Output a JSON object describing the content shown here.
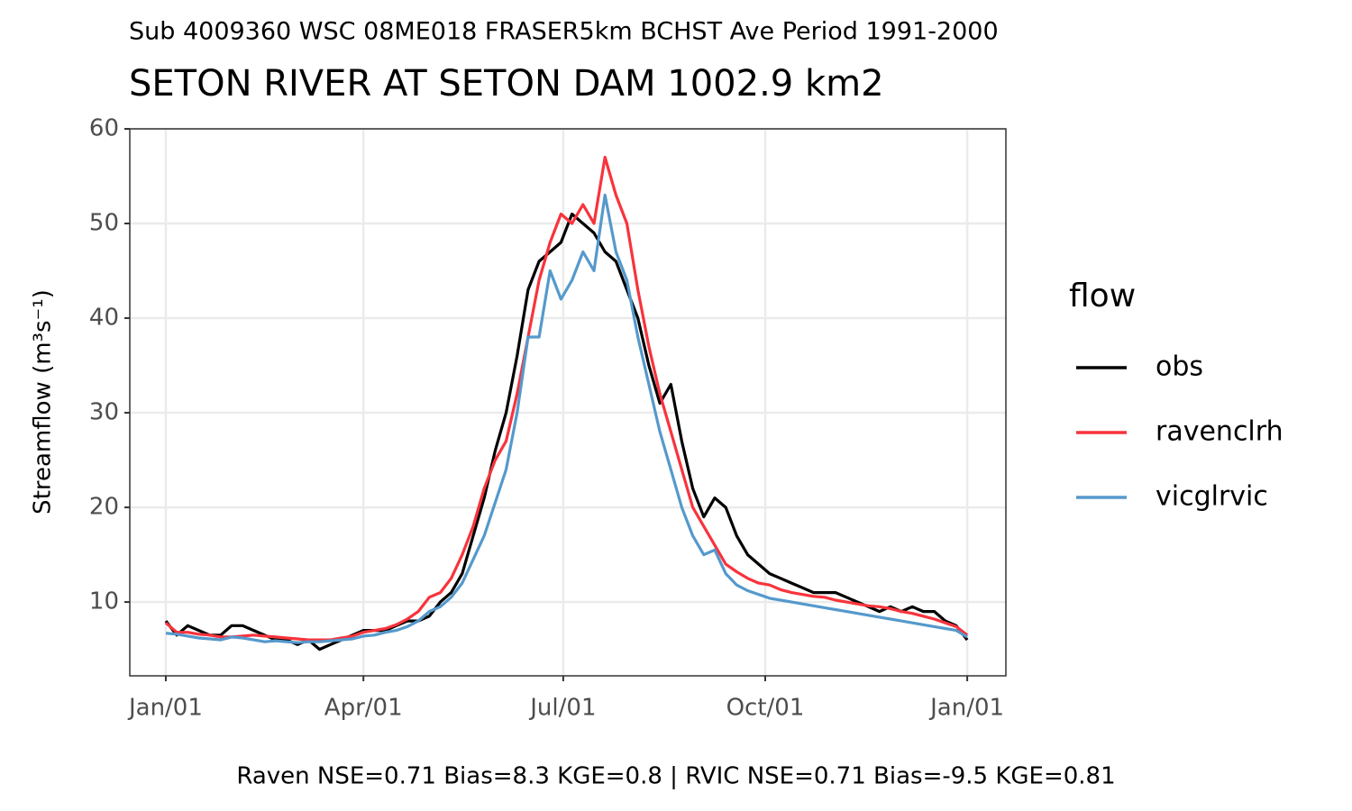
{
  "chart_data": {
    "type": "line",
    "subtitle": "Sub 4009360 WSC 08ME018 FRASER5km BCHST Ave Period 1991-2000",
    "title": "SETON RIVER AT SETON DAM 1002.9 km2",
    "y_label": "Streamflow (m³s⁻¹)",
    "caption": "Raven NSE=0.71 Bias=8.3 KGE=0.8 | RVIC NSE=0.71 Bias=-9.5 KGE=0.81",
    "legend_title": "flow",
    "legend_position": "right",
    "grid": true,
    "xlim": [
      -16.4,
      382.6
    ],
    "xticks": [
      {
        "value": 0,
        "label": "Jan/01"
      },
      {
        "value": 90,
        "label": "Apr/01"
      },
      {
        "value": 181,
        "label": "Jul/01"
      },
      {
        "value": 273,
        "label": "Oct/01"
      },
      {
        "value": 365,
        "label": "Jan/01"
      }
    ],
    "ylim": [
      2.2,
      60
    ],
    "yticks": [
      10,
      20,
      30,
      40,
      50,
      60
    ],
    "x": [
      0,
      5,
      10,
      15,
      20,
      25,
      30,
      35,
      40,
      45,
      50,
      55,
      60,
      65,
      70,
      75,
      80,
      85,
      90,
      95,
      100,
      105,
      110,
      115,
      120,
      125,
      130,
      135,
      140,
      145,
      150,
      155,
      160,
      165,
      170,
      175,
      180,
      185,
      190,
      195,
      200,
      205,
      210,
      215,
      220,
      225,
      230,
      235,
      240,
      245,
      250,
      255,
      260,
      265,
      270,
      275,
      280,
      285,
      290,
      295,
      300,
      305,
      310,
      315,
      320,
      325,
      330,
      335,
      340,
      345,
      350,
      355,
      360,
      365
    ],
    "series": [
      {
        "name": "obs",
        "color": "#000000",
        "values": [
          8,
          6.5,
          7.5,
          7,
          6.5,
          6.5,
          7.5,
          7.5,
          7,
          6.5,
          6,
          6,
          5.5,
          6,
          5,
          5.5,
          6,
          6.5,
          7,
          7,
          7,
          7.5,
          8,
          8,
          8.5,
          10,
          11,
          13,
          17,
          21,
          26,
          30,
          36,
          43,
          46,
          47,
          48,
          51,
          50,
          49,
          47,
          46,
          43,
          40,
          35,
          31,
          33,
          27,
          22,
          19,
          21,
          20,
          17,
          15,
          14,
          13,
          12.5,
          12,
          11.5,
          11,
          11,
          11,
          10.5,
          10,
          9.5,
          9,
          9.5,
          9,
          9.5,
          9,
          9,
          8,
          7.5,
          6
        ]
      },
      {
        "name": "ravenclrh",
        "color": "#f8333c",
        "values": [
          7.8,
          6.8,
          6.8,
          6.6,
          6.5,
          6.3,
          6.3,
          6.4,
          6.5,
          6.4,
          6.3,
          6.2,
          6.1,
          6,
          6,
          6,
          6.2,
          6.4,
          6.8,
          7,
          7.2,
          7.6,
          8.2,
          9,
          10.5,
          11,
          12.5,
          15,
          18,
          22,
          25,
          27,
          32,
          38,
          44,
          48,
          51,
          50,
          52,
          50,
          57,
          53,
          50,
          43,
          37,
          32,
          28,
          24,
          20,
          18,
          16,
          14,
          13.2,
          12.5,
          12,
          11.8,
          11.3,
          11,
          10.8,
          10.6,
          10.5,
          10.2,
          10,
          9.8,
          9.6,
          9.5,
          9.3,
          9,
          8.8,
          8.5,
          8.2,
          7.8,
          7.4,
          6.5
        ]
      },
      {
        "name": "vicglrvic",
        "color": "#5599cc",
        "values": [
          6.7,
          6.6,
          6.4,
          6.2,
          6.1,
          6,
          6.3,
          6.2,
          6,
          5.8,
          5.9,
          5.8,
          5.7,
          5.8,
          5.8,
          5.9,
          6,
          6.1,
          6.4,
          6.5,
          6.8,
          7,
          7.4,
          8,
          9,
          9.5,
          10.5,
          12,
          14.5,
          17,
          20.5,
          24,
          30,
          38,
          38,
          45,
          42,
          44,
          47,
          45,
          53,
          47,
          44,
          38,
          33,
          28,
          24,
          20,
          17,
          15,
          15.5,
          13,
          11.8,
          11.2,
          10.8,
          10.4,
          10.2,
          10,
          9.8,
          9.6,
          9.4,
          9.2,
          9,
          8.8,
          8.6,
          8.4,
          8.2,
          8,
          7.8,
          7.6,
          7.4,
          7.2,
          7,
          6.3
        ]
      }
    ]
  }
}
